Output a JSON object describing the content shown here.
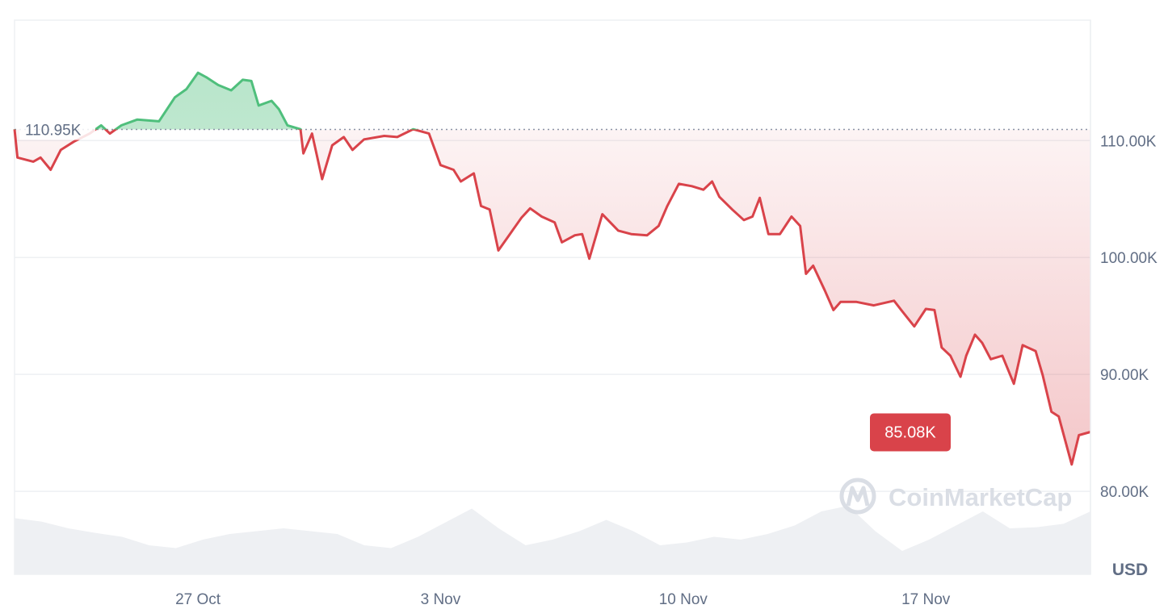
{
  "chart_data": {
    "type": "line",
    "baseline": {
      "value": 110.95,
      "label": "110.95K"
    },
    "last_price": {
      "value": 85.08,
      "label": "85.08K"
    },
    "currency_label": "USD",
    "watermark": "CoinMarketCap",
    "ylim": [
      72.9,
      120.3
    ],
    "y_ticks": [
      {
        "value": 110,
        "label": "110.00K"
      },
      {
        "value": 100,
        "label": "100.00K"
      },
      {
        "value": 90,
        "label": "90.00K"
      },
      {
        "value": 80,
        "label": "80.00K"
      }
    ],
    "x_ticks": [
      {
        "value": "10-27 00:00",
        "label": "27 Oct"
      },
      {
        "value": "11-03 00:00",
        "label": "3 Nov"
      },
      {
        "value": "11-10 00:00",
        "label": "10 Nov"
      },
      {
        "value": "11-17 00:00",
        "label": "17 Nov"
      }
    ],
    "grid": true,
    "colors": {
      "up": "#4fbf7c",
      "down": "#d9434a",
      "label_bg": "#d9434a",
      "volume": "#eef0f3"
    },
    "x": [
      "10-21 17:00",
      "10-21 19:00",
      "10-22 06:00",
      "10-22 11:00",
      "10-22 18:00",
      "10-23 01:00",
      "10-23 10:00",
      "10-23 21:00",
      "10-24 05:00",
      "10-24 11:00",
      "10-24 19:00",
      "10-25 06:00",
      "10-25 21:00",
      "10-26 08:00",
      "10-26 16:00",
      "10-27 00:00",
      "10-27 06:00",
      "10-27 14:00",
      "10-27 23:00",
      "10-28 07:00",
      "10-28 13:00",
      "10-28 18:00",
      "10-29 03:00",
      "10-29 08:00",
      "10-29 14:00",
      "10-29 23:00",
      "10-30 01:00",
      "10-30 07:00",
      "10-30 14:00",
      "10-30 21:00",
      "10-31 05:00",
      "10-31 11:00",
      "10-31 19:00",
      "11-01 09:00",
      "11-01 18:00",
      "11-02 05:00",
      "11-02 16:00",
      "11-03 00:00",
      "11-03 09:00",
      "11-03 14:00",
      "11-03 23:00",
      "11-04 04:00",
      "11-04 10:00",
      "11-04 16:00",
      "11-05 00:00",
      "11-05 08:00",
      "11-05 14:00",
      "11-05 22:00",
      "11-06 07:00",
      "11-06 12:00",
      "11-06 21:00",
      "11-07 02:00",
      "11-07 07:00",
      "11-07 16:00",
      "11-08 03:00",
      "11-08 12:00",
      "11-08 23:00",
      "11-09 07:00",
      "11-09 13:00",
      "11-09 21:00",
      "11-10 06:00",
      "11-10 14:00",
      "11-10 20:00",
      "11-11 01:00",
      "11-11 10:00",
      "11-11 18:00",
      "11-12 00:00",
      "11-12 05:00",
      "11-12 11:00",
      "11-12 19:00",
      "11-13 03:00",
      "11-13 09:00",
      "11-13 13:00",
      "11-13 18:00",
      "11-14 02:00",
      "11-14 08:00",
      "11-14 13:00",
      "11-15 00:00",
      "11-15 12:00",
      "11-16 02:00",
      "11-16 07:00",
      "11-16 16:00",
      "11-17 00:00",
      "11-17 06:00",
      "11-17 11:00",
      "11-17 17:00",
      "11-18 00:00",
      "11-18 04:00",
      "11-18 10:00",
      "11-18 15:00",
      "11-18 21:00",
      "11-19 05:00",
      "11-19 13:00",
      "11-19 19:00",
      "11-20 04:00",
      "11-20 09:00",
      "11-20 15:00",
      "11-20 20:00",
      "11-21 05:00",
      "11-21 10:00",
      "11-21 18:00"
    ],
    "values": [
      110.97,
      108.55,
      108.2,
      108.55,
      107.5,
      109.2,
      109.9,
      110.6,
      111.3,
      110.6,
      111.3,
      111.8,
      111.65,
      113.7,
      114.4,
      115.8,
      115.4,
      114.75,
      114.3,
      115.2,
      115.1,
      113.0,
      113.4,
      112.7,
      111.3,
      110.97,
      108.9,
      110.6,
      106.7,
      109.6,
      110.3,
      109.2,
      110.1,
      110.4,
      110.3,
      110.97,
      110.6,
      107.9,
      107.5,
      106.5,
      107.2,
      104.4,
      104.1,
      100.6,
      102.0,
      103.4,
      104.2,
      103.5,
      103.0,
      101.3,
      101.9,
      102.0,
      99.9,
      103.7,
      102.3,
      102.0,
      101.9,
      102.7,
      104.4,
      106.3,
      106.1,
      105.8,
      106.5,
      105.2,
      104.1,
      103.2,
      103.5,
      105.1,
      102.0,
      102.0,
      103.5,
      102.7,
      98.6,
      99.3,
      97.2,
      95.5,
      96.2,
      96.2,
      95.9,
      96.3,
      95.5,
      94.1,
      95.6,
      95.5,
      92.3,
      91.6,
      89.8,
      91.6,
      93.4,
      92.7,
      91.3,
      91.6,
      89.2,
      92.5,
      92.0,
      89.9,
      86.8,
      86.4,
      82.3,
      84.8,
      85.08
    ],
    "volume_relative": [
      0.78,
      0.72,
      0.6,
      0.52,
      0.45,
      0.3,
      0.25,
      0.4,
      0.5,
      0.55,
      0.6,
      0.55,
      0.5,
      0.3,
      0.25,
      0.45,
      0.7,
      0.95,
      0.6,
      0.3,
      0.4,
      0.55,
      0.75,
      0.55,
      0.3,
      0.35,
      0.45,
      0.4,
      0.5,
      0.65,
      0.9,
      1.0,
      0.55,
      0.2,
      0.4,
      0.65,
      0.9,
      0.6,
      0.62,
      0.68,
      0.9
    ]
  }
}
